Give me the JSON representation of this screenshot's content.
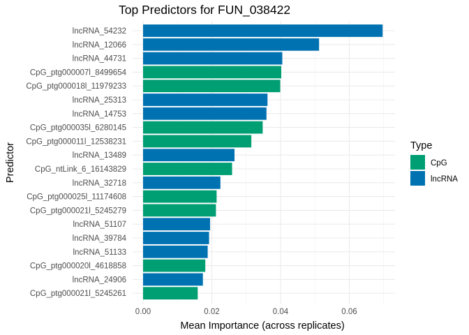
{
  "chart_data": {
    "type": "bar",
    "orientation": "horizontal",
    "title": "Top Predictors for FUN_038422",
    "xlabel": "Mean Importance (across replicates)",
    "ylabel": "Predictor",
    "xlim": [
      0,
      0.0725
    ],
    "x_ticks": [
      0.0,
      0.02,
      0.04,
      0.06
    ],
    "x_tick_labels": [
      "0.00",
      "0.02",
      "0.04",
      "0.06"
    ],
    "grid": true,
    "legend": {
      "title": "Type",
      "placement": "right",
      "entries": [
        {
          "name": "CpG",
          "color": "#009E73"
        },
        {
          "name": "lncRNA",
          "color": "#0072B2"
        }
      ]
    },
    "categories": [
      "lncRNA_54232",
      "lncRNA_12066",
      "lncRNA_44731",
      "CpG_ptg000007l_8499654",
      "CpG_ptg000018l_11979233",
      "lncRNA_25313",
      "lncRNA_14753",
      "CpG_ptg000035l_6280145",
      "CpG_ptg000011l_12538231",
      "lncRNA_13489",
      "CpG_ntLink_6_16143829",
      "lncRNA_32718",
      "CpG_ptg000025l_11174608",
      "CpG_ptg000021l_5245279",
      "lncRNA_51107",
      "lncRNA_39784",
      "lncRNA_51133",
      "CpG_ptg000020l_4618858",
      "lncRNA_24906",
      "CpG_ptg000021l_5245261"
    ],
    "values": [
      0.0697,
      0.0512,
      0.0405,
      0.0402,
      0.0399,
      0.0362,
      0.0359,
      0.0348,
      0.0315,
      0.0266,
      0.0259,
      0.0225,
      0.0214,
      0.0212,
      0.0195,
      0.0192,
      0.0188,
      0.0181,
      0.0174,
      0.0159
    ],
    "types": [
      "lncRNA",
      "lncRNA",
      "lncRNA",
      "CpG",
      "CpG",
      "lncRNA",
      "lncRNA",
      "CpG",
      "CpG",
      "lncRNA",
      "CpG",
      "lncRNA",
      "CpG",
      "CpG",
      "lncRNA",
      "lncRNA",
      "lncRNA",
      "CpG",
      "lncRNA",
      "CpG"
    ]
  }
}
